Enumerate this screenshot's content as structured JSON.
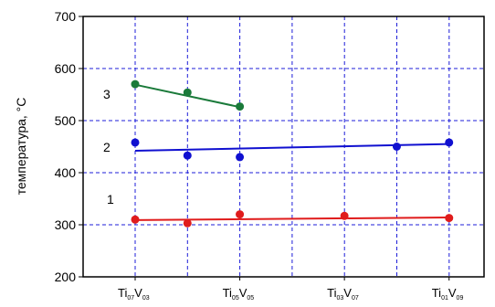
{
  "chart_data": {
    "type": "scatter",
    "title": "",
    "ylabel": "температура, °C",
    "xlabel": "",
    "ylim": [
      200,
      700
    ],
    "yticks": [
      200,
      300,
      400,
      500,
      600,
      700
    ],
    "xlim": [
      -0.05,
      1.05
    ],
    "x_grid_positions": [
      0.0,
      0.1667,
      0.3333,
      0.5,
      0.6667,
      0.8333,
      1.0
    ],
    "grid": true,
    "x_tick_labels": [
      {
        "x": 0.1667,
        "text": "Ti",
        "sub1": "07",
        "mid": "V",
        "sub2": "03"
      },
      {
        "x": 0.5,
        "text": "Ti",
        "sub1": "05",
        "mid": "V",
        "sub2": "05"
      },
      {
        "x": 0.8333,
        "text": "Ti",
        "sub1": "03",
        "mid": "V",
        "sub2": "07"
      },
      {
        "x": 1.1667,
        "text": "Ti",
        "sub1": "01",
        "mid": "V",
        "sub2": "09"
      }
    ],
    "series": [
      {
        "label": "1",
        "color": "#e01c1c",
        "x": [
          0.1667,
          0.3333,
          0.5,
          0.8333,
          1.1667
        ],
        "y": [
          310,
          303,
          320,
          317,
          313
        ],
        "fit": [
          [
            0.1667,
            309
          ],
          [
            1.1667,
            314
          ]
        ]
      },
      {
        "label": "2",
        "color": "#1010d0",
        "x": [
          0.1667,
          0.3333,
          0.5,
          1.0,
          1.1667
        ],
        "y": [
          458,
          433,
          430,
          450,
          458
        ],
        "fit": [
          [
            0.1667,
            442
          ],
          [
            1.1667,
            455
          ]
        ]
      },
      {
        "label": "3",
        "color": "#1a7a3a",
        "x": [
          0.1667,
          0.3333,
          0.5
        ],
        "y": [
          570,
          554,
          527
        ],
        "fit": [
          [
            0.1667,
            569
          ],
          [
            0.5,
            526
          ]
        ]
      }
    ]
  }
}
